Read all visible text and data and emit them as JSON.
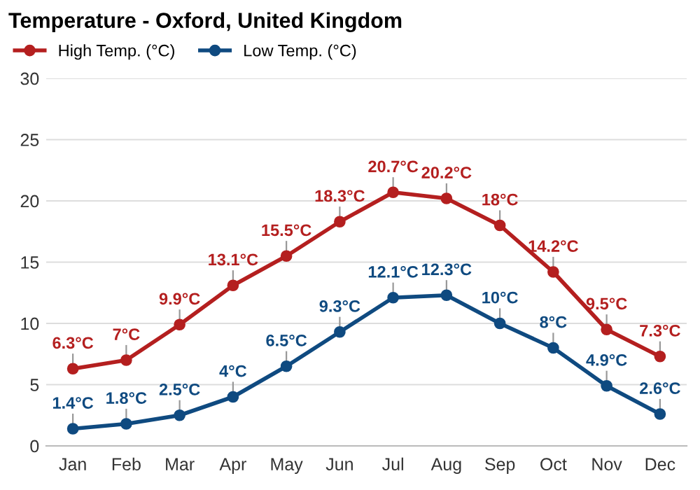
{
  "chart_data": {
    "type": "line",
    "title": "Temperature - Oxford, United Kingdom",
    "categories": [
      "Jan",
      "Feb",
      "Mar",
      "Apr",
      "May",
      "Jun",
      "Jul",
      "Aug",
      "Sep",
      "Oct",
      "Nov",
      "Dec"
    ],
    "series": [
      {
        "name": "High Temp. (°C)",
        "color": "#b41f1f",
        "values": [
          6.3,
          7,
          9.9,
          13.1,
          15.5,
          18.3,
          20.7,
          20.2,
          18,
          14.2,
          9.5,
          7.3
        ],
        "value_labels": [
          "6.3°C",
          "7°C",
          "9.9°C",
          "13.1°C",
          "15.5°C",
          "18.3°C",
          "20.7°C",
          "20.2°C",
          "18°C",
          "14.2°C",
          "9.5°C",
          "7.3°C"
        ]
      },
      {
        "name": "Low Temp. (°C)",
        "color": "#0f4a80",
        "values": [
          1.4,
          1.8,
          2.5,
          4,
          6.5,
          9.3,
          12.1,
          12.3,
          10,
          8,
          4.9,
          2.6
        ],
        "value_labels": [
          "1.4°C",
          "1.8°C",
          "2.5°C",
          "4°C",
          "6.5°C",
          "9.3°C",
          "12.1°C",
          "12.3°C",
          "10°C",
          "8°C",
          "4.9°C",
          "2.6°C"
        ]
      }
    ],
    "ylim": [
      0,
      30
    ],
    "yticks": [
      0,
      5,
      10,
      15,
      20,
      25,
      30
    ],
    "grid": "y",
    "legend": "top left",
    "marker": "circle",
    "line_style": "solid"
  }
}
